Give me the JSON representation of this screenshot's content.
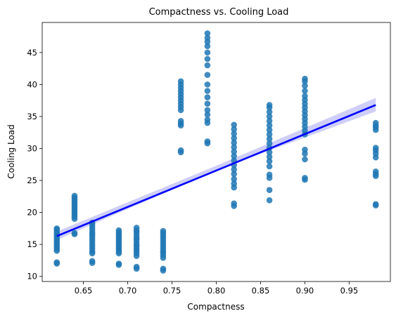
{
  "chart_data": {
    "type": "scatter",
    "title": "Compactness vs. Cooling Load",
    "xlabel": "Compactness",
    "ylabel": "Cooling Load",
    "xlim": [
      0.6035,
      0.9965
    ],
    "ylim": [
      9.2,
      49.7
    ],
    "x_ticks": [
      0.65,
      0.7,
      0.75,
      0.8,
      0.85,
      0.9,
      0.95
    ],
    "x_tick_labels": [
      "0.65",
      "0.70",
      "0.75",
      "0.80",
      "0.85",
      "0.90",
      "0.95"
    ],
    "y_ticks": [
      10,
      15,
      20,
      25,
      30,
      35,
      40,
      45
    ],
    "y_tick_labels": [
      "10",
      "15",
      "20",
      "25",
      "30",
      "35",
      "40",
      "45"
    ],
    "grid": false,
    "point_color": "#1f77b4",
    "fit_color": "#0000ff",
    "ci_color": "#bdbdf5",
    "columns": [
      {
        "x": 0.62,
        "y": [
          12.0,
          12.2,
          14.0,
          14.3,
          14.6,
          14.9,
          15.2,
          15.5,
          15.8,
          16.1,
          16.4,
          16.7,
          17.0,
          17.3,
          17.5
        ]
      },
      {
        "x": 0.64,
        "y": [
          16.6,
          16.8,
          19.0,
          19.3,
          19.6,
          19.9,
          20.2,
          20.5,
          20.8,
          21.1,
          21.4,
          21.7,
          22.0,
          22.3,
          22.6
        ]
      },
      {
        "x": 0.66,
        "y": [
          12.1,
          12.4,
          13.6,
          13.9,
          14.3,
          14.7,
          15.1,
          15.5,
          15.9,
          16.3,
          16.6,
          16.9,
          17.3,
          17.7,
          18.1,
          18.4
        ]
      },
      {
        "x": 0.69,
        "y": [
          11.8,
          12.0,
          13.6,
          13.9,
          14.2,
          14.5,
          14.8,
          15.1,
          15.4,
          15.7,
          16.0,
          16.3,
          16.6,
          16.9,
          17.2
        ]
      },
      {
        "x": 0.71,
        "y": [
          11.2,
          11.5,
          13.2,
          13.6,
          14.0,
          14.3,
          14.7,
          15.0,
          15.4,
          15.8,
          16.1,
          16.5,
          16.9,
          17.2,
          17.6
        ]
      },
      {
        "x": 0.74,
        "y": [
          10.9,
          11.2,
          12.9,
          13.3,
          13.7,
          14.0,
          14.4,
          14.8,
          15.2,
          15.6,
          16.0,
          16.4,
          16.8,
          17.1
        ]
      },
      {
        "x": 0.76,
        "y": [
          29.4,
          29.7,
          33.6,
          33.9,
          34.3,
          36.0,
          36.5,
          37.0,
          37.5,
          38.0,
          38.5,
          39.0,
          39.5,
          40.0,
          40.5
        ]
      },
      {
        "x": 0.79,
        "y": [
          30.8,
          31.1,
          34.0,
          34.5,
          35.3,
          36.0,
          37.0,
          38.0,
          39.0,
          40.0,
          41.5,
          43.0,
          44.0,
          45.0,
          46.0,
          46.7,
          47.3,
          48.0
        ]
      },
      {
        "x": 0.82,
        "y": [
          21.0,
          21.4,
          23.9,
          24.5,
          25.2,
          26.0,
          26.7,
          27.4,
          28.1,
          28.8,
          29.5,
          30.2,
          30.9,
          31.6,
          32.3,
          33.0,
          33.7
        ]
      },
      {
        "x": 0.86,
        "y": [
          21.9,
          23.5,
          25.4,
          25.9,
          27.2,
          28.0,
          28.7,
          29.4,
          30.1,
          30.8,
          31.5,
          32.2,
          32.9,
          33.6,
          34.3,
          35.0,
          35.7,
          36.4,
          36.8
        ]
      },
      {
        "x": 0.9,
        "y": [
          25.1,
          25.4,
          28.3,
          29.2,
          29.8,
          32.2,
          32.8,
          33.4,
          34.0,
          34.6,
          35.2,
          35.8,
          36.4,
          37.0,
          37.6,
          38.2,
          39.0,
          39.8,
          40.5,
          40.9
        ]
      },
      {
        "x": 0.98,
        "y": [
          21.1,
          21.3,
          25.7,
          26.0,
          26.4,
          28.6,
          29.2,
          29.7,
          30.1,
          32.9,
          33.3,
          33.6,
          34.0
        ]
      }
    ],
    "fit_line": {
      "x": [
        0.62,
        0.98
      ],
      "y": [
        16.3,
        36.8
      ]
    },
    "ci_band": {
      "x": [
        0.62,
        0.8,
        0.98
      ],
      "lower": [
        15.7,
        26.6,
        35.8
      ],
      "upper": [
        17.0,
        27.3,
        37.9
      ]
    }
  }
}
